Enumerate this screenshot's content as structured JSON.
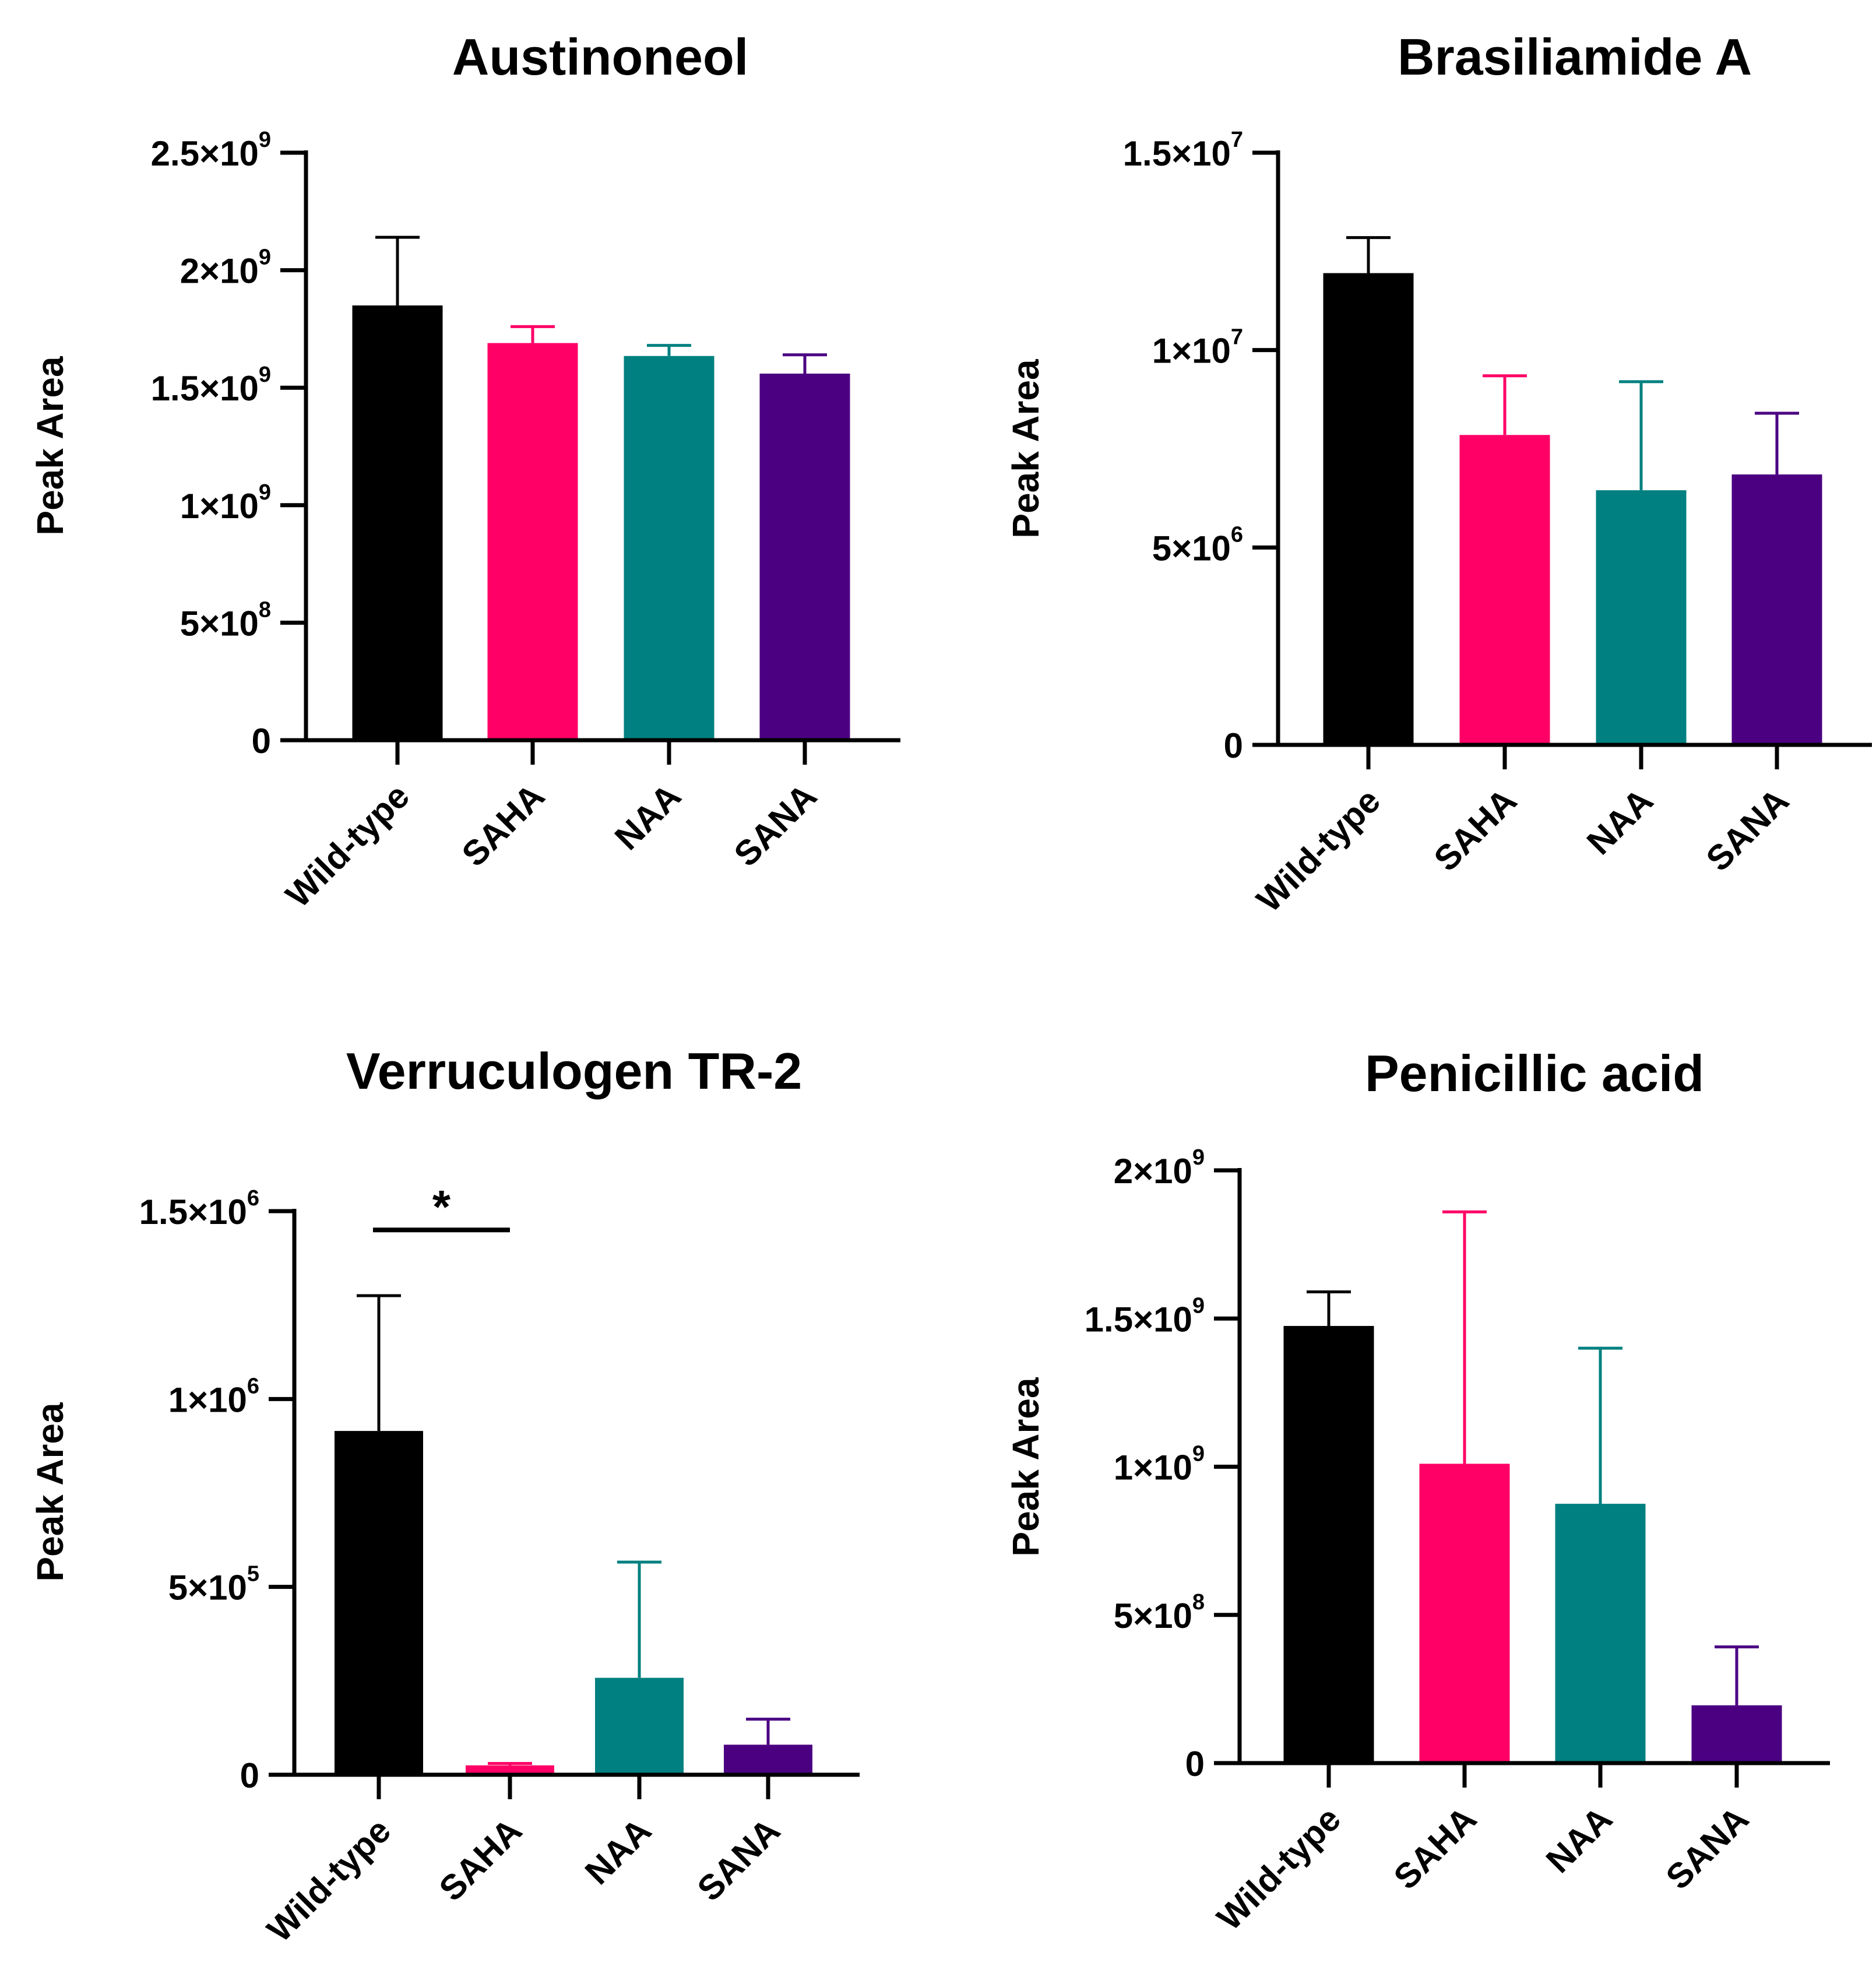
{
  "chart_data": [
    {
      "id": "austinoneol",
      "type": "bar",
      "title": "Austinoneol",
      "xlabel": "",
      "ylabel": "Peak Area",
      "categories": [
        "Wild-type",
        "SAHA",
        "NAA",
        "SANA"
      ],
      "values": [
        1850000000,
        1690000000,
        1635000000,
        1560000000
      ],
      "errors": [
        290000000,
        70000000,
        45000000,
        80000000
      ],
      "colors": [
        "#000000",
        "#ff0066",
        "#008080",
        "#4b0082"
      ],
      "ylim": [
        0,
        2500000000
      ],
      "ticks": [
        {
          "value": 0,
          "mantissa": "0",
          "exponent": ""
        },
        {
          "value": 500000000,
          "mantissa": "5×10",
          "exponent": "8"
        },
        {
          "value": 1000000000,
          "mantissa": "1×10",
          "exponent": "9"
        },
        {
          "value": 1500000000,
          "mantissa": "1.5×10",
          "exponent": "9"
        },
        {
          "value": 2000000000,
          "mantissa": "2×10",
          "exponent": "9"
        },
        {
          "value": 2500000000,
          "mantissa": "2.5×10",
          "exponent": "9"
        }
      ],
      "grid": false,
      "significance": []
    },
    {
      "id": "brasiliamide-a",
      "type": "bar",
      "title": "Brasiliamide A",
      "xlabel": "",
      "ylabel": "Peak Area",
      "categories": [
        "Wild-type",
        "SAHA",
        "NAA",
        "SANA"
      ],
      "values": [
        11950000,
        7850000,
        6450000,
        6850000
      ],
      "errors": [
        900000,
        1500000,
        2750000,
        1550000
      ],
      "colors": [
        "#000000",
        "#ff0066",
        "#008080",
        "#4b0082"
      ],
      "ylim": [
        0,
        15000000
      ],
      "ticks": [
        {
          "value": 0,
          "mantissa": "0",
          "exponent": ""
        },
        {
          "value": 5000000,
          "mantissa": "5×10",
          "exponent": "6"
        },
        {
          "value": 10000000,
          "mantissa": "1×10",
          "exponent": "7"
        },
        {
          "value": 15000000,
          "mantissa": "1.5×10",
          "exponent": "7"
        }
      ],
      "grid": false,
      "significance": []
    },
    {
      "id": "verruculogen-tr-2",
      "type": "bar",
      "title": "Verruculogen TR-2",
      "xlabel": "",
      "ylabel": "Peak Area",
      "categories": [
        "Wild-type",
        "SAHA",
        "NAA",
        "SANA"
      ],
      "values": [
        915000,
        25000,
        258000,
        80000
      ],
      "errors": [
        360000,
        5000,
        308000,
        68000
      ],
      "colors": [
        "#000000",
        "#ff0066",
        "#008080",
        "#4b0082"
      ],
      "ylim": [
        0,
        1500000
      ],
      "ticks": [
        {
          "value": 0,
          "mantissa": "0",
          "exponent": ""
        },
        {
          "value": 500000,
          "mantissa": "5×10",
          "exponent": "5"
        },
        {
          "value": 1000000,
          "mantissa": "1×10",
          "exponent": "6"
        },
        {
          "value": 1500000,
          "mantissa": "1.5×10",
          "exponent": "6"
        }
      ],
      "grid": false,
      "significance": [
        {
          "from": "Wild-type",
          "to": "SAHA",
          "level": 1450000,
          "label": "*"
        }
      ]
    },
    {
      "id": "penicillic-acid",
      "type": "bar",
      "title": "Penicillic acid",
      "xlabel": "",
      "ylabel": "Peak Area",
      "categories": [
        "Wild-type",
        "SAHA",
        "NAA",
        "SANA"
      ],
      "values": [
        1475000000,
        1010000000,
        875000000,
        195000000
      ],
      "errors": [
        115000000,
        850000000,
        525000000,
        197000000
      ],
      "colors": [
        "#000000",
        "#ff0066",
        "#008080",
        "#4b0082"
      ],
      "ylim": [
        0,
        2000000000
      ],
      "ticks": [
        {
          "value": 0,
          "mantissa": "0",
          "exponent": ""
        },
        {
          "value": 500000000,
          "mantissa": "5×10",
          "exponent": "8"
        },
        {
          "value": 1000000000,
          "mantissa": "1×10",
          "exponent": "9"
        },
        {
          "value": 1500000000,
          "mantissa": "1.5×10",
          "exponent": "9"
        },
        {
          "value": 2000000000,
          "mantissa": "2×10",
          "exponent": "9"
        }
      ],
      "grid": false,
      "significance": []
    }
  ]
}
